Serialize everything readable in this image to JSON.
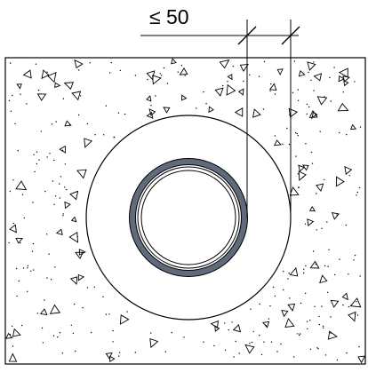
{
  "drawing": {
    "dimension_label": "≤ 50"
  }
}
